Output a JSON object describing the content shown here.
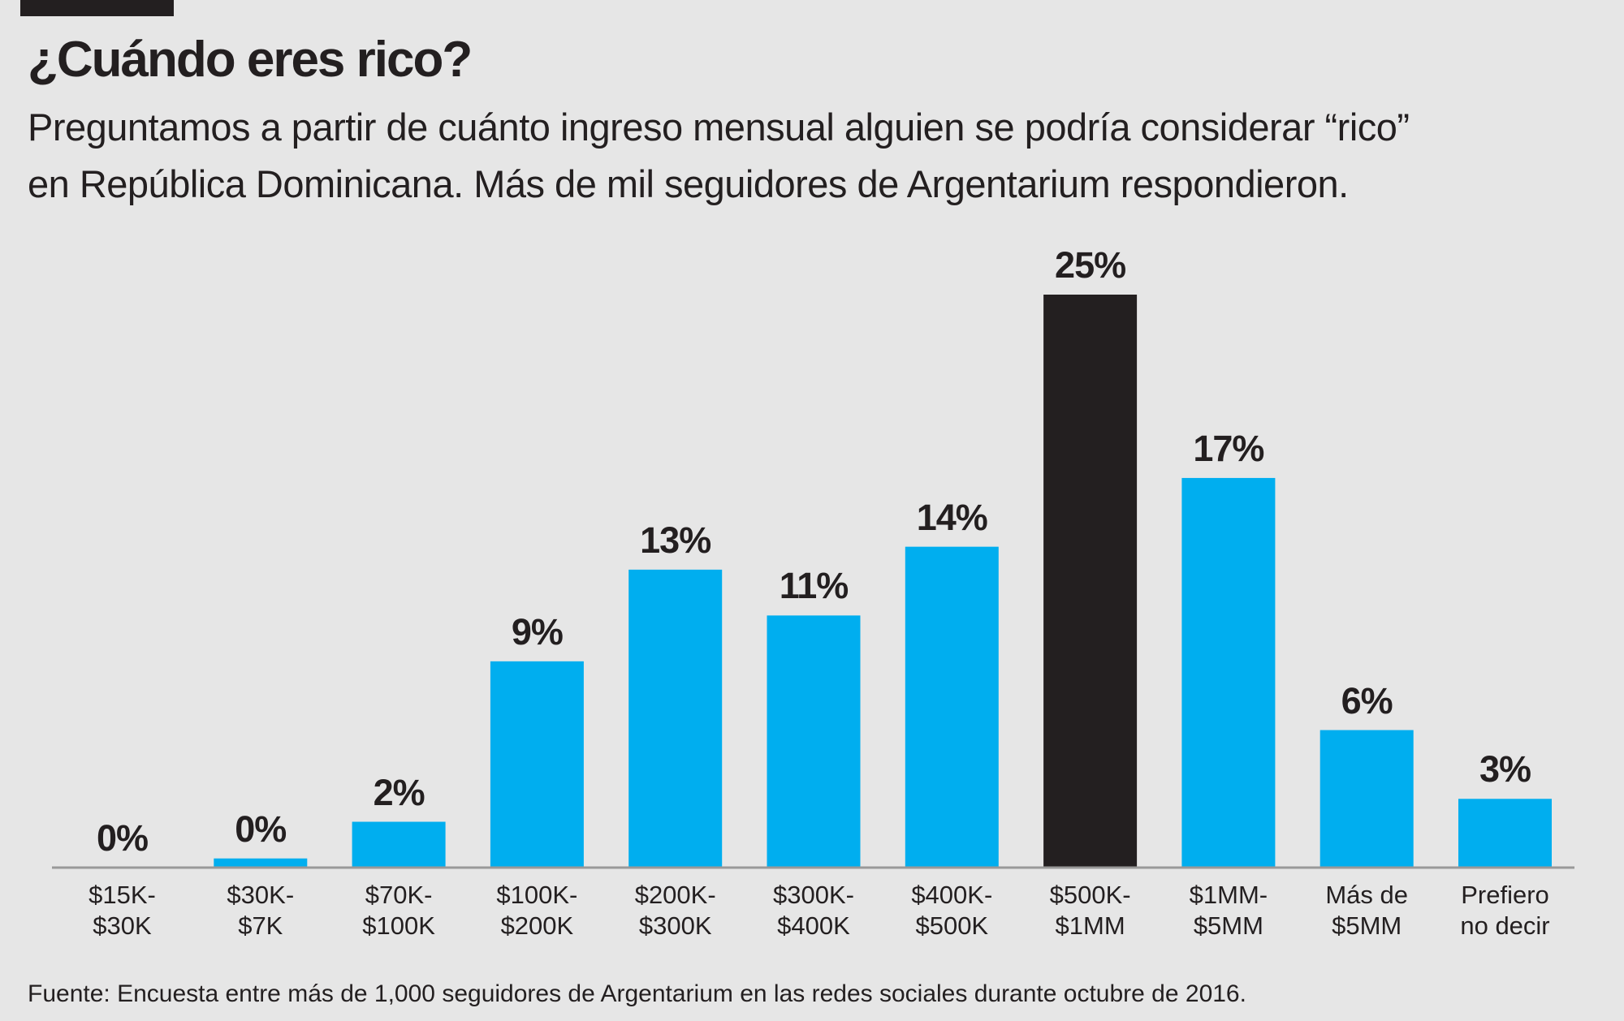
{
  "chart_data": {
    "type": "bar",
    "title": "¿Cuándo eres rico?",
    "subtitle": "Preguntamos a partir de cuánto ingreso mensual alguien se podría considerar “rico” en República Dominicana. Más de mil seguidores de Argentarium respondieron.",
    "source": "Fuente: Encuesta entre más de 1,000 seguidores de Argentarium en las redes sociales durante octubre de 2016.",
    "categories": [
      "$15K-\n$30K",
      "$30K-\n$7K",
      "$70K-\n$100K",
      "$100K-\n$200K",
      "$200K-\n$300K",
      "$300K-\n$400K",
      "$400K-\n$500K",
      "$500K-\n$1MM",
      "$1MM-\n$5MM",
      "Más de\n$5MM",
      "Prefiero\nno decir"
    ],
    "values": [
      0,
      0.4,
      2,
      9,
      13,
      11,
      14,
      25,
      17,
      6,
      3
    ],
    "value_labels": [
      "0%",
      "0%",
      "2%",
      "9%",
      "13%",
      "11%",
      "14%",
      "25%",
      "17%",
      "6%",
      "3%"
    ],
    "colors": [
      "#00aeef",
      "#00aeef",
      "#00aeef",
      "#00aeef",
      "#00aeef",
      "#00aeef",
      "#00aeef",
      "#231f20",
      "#00aeef",
      "#00aeef",
      "#00aeef"
    ],
    "ylim": [
      0,
      25
    ]
  }
}
